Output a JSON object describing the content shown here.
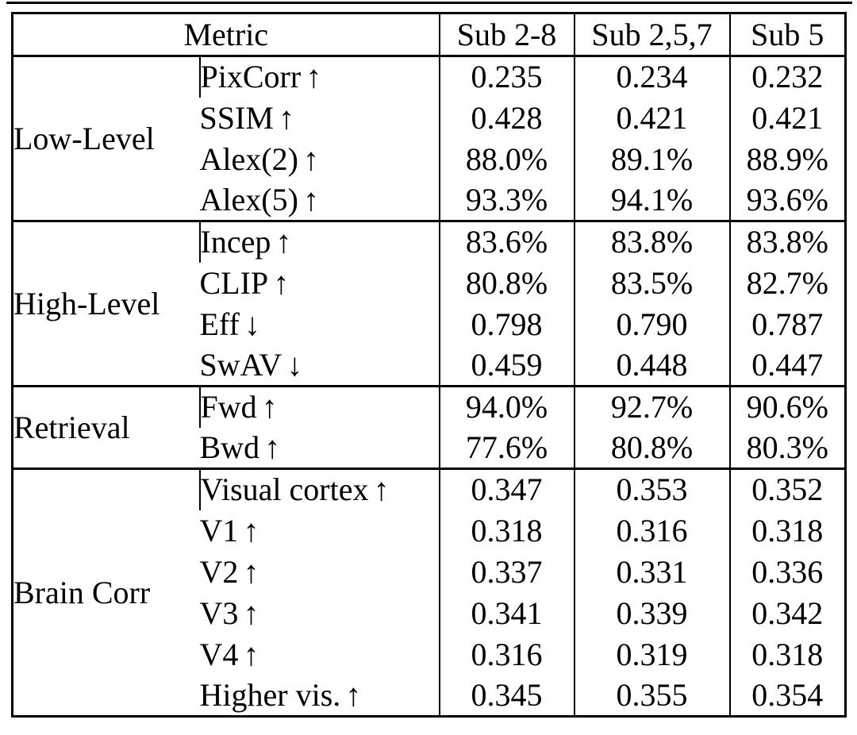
{
  "table": {
    "header": {
      "metric": "Metric",
      "cols": [
        "Sub 2-8",
        "Sub 2,5,7",
        "Sub 5"
      ]
    },
    "sections": [
      {
        "group": "Low-Level",
        "rows": [
          {
            "metric": "PixCorr",
            "arrow": "↑",
            "values": [
              "0.235",
              "0.234",
              "0.232"
            ],
            "bold": [
              true,
              false,
              false
            ]
          },
          {
            "metric": "SSIM",
            "arrow": "↑",
            "values": [
              "0.428",
              "0.421",
              "0.421"
            ],
            "bold": [
              true,
              false,
              false
            ]
          },
          {
            "metric": "Alex(2)",
            "arrow": "↑",
            "values": [
              "88.0%",
              "89.1%",
              "88.9%"
            ],
            "bold": [
              false,
              true,
              false
            ]
          },
          {
            "metric": "Alex(5)",
            "arrow": "↑",
            "values": [
              "93.3%",
              "94.1%",
              "93.6%"
            ],
            "bold": [
              false,
              true,
              false
            ]
          }
        ]
      },
      {
        "group": "High-Level",
        "rows": [
          {
            "metric": "Incep",
            "arrow": "↑",
            "values": [
              "83.6%",
              "83.8%",
              "83.8%"
            ],
            "bold": [
              false,
              true,
              true
            ]
          },
          {
            "metric": "CLIP",
            "arrow": "↑",
            "values": [
              "80.8%",
              "83.5%",
              "82.7%"
            ],
            "bold": [
              false,
              true,
              false
            ]
          },
          {
            "metric": "Eff",
            "arrow": "↓",
            "values": [
              "0.798",
              "0.790",
              "0.787"
            ],
            "bold": [
              false,
              false,
              true
            ]
          },
          {
            "metric": "SwAV",
            "arrow": "↓",
            "values": [
              "0.459",
              "0.448",
              "0.447"
            ],
            "bold": [
              false,
              false,
              true
            ]
          }
        ]
      },
      {
        "group": "Retrieval",
        "rows": [
          {
            "metric": "Fwd",
            "arrow": "↑",
            "values": [
              "94.0%",
              "92.7%",
              "90.6%"
            ],
            "bold": [
              true,
              false,
              false
            ]
          },
          {
            "metric": "Bwd",
            "arrow": "↑",
            "values": [
              "77.6%",
              "80.8%",
              "80.3%"
            ],
            "bold": [
              false,
              true,
              false
            ]
          }
        ]
      },
      {
        "group": "Brain Corr",
        "rows": [
          {
            "metric": "Visual cortex",
            "arrow": "↑",
            "values": [
              "0.347",
              "0.353",
              "0.352"
            ],
            "bold": [
              false,
              true,
              false
            ]
          },
          {
            "metric": "V1",
            "arrow": "↑",
            "values": [
              "0.318",
              "0.316",
              "0.318"
            ],
            "bold": [
              true,
              false,
              true
            ]
          },
          {
            "metric": "V2",
            "arrow": "↑",
            "values": [
              "0.337",
              "0.331",
              "0.336"
            ],
            "bold": [
              true,
              false,
              false
            ]
          },
          {
            "metric": "V3",
            "arrow": "↑",
            "values": [
              "0.341",
              "0.339",
              "0.342"
            ],
            "bold": [
              false,
              false,
              true
            ]
          },
          {
            "metric": "V4",
            "arrow": "↑",
            "values": [
              "0.316",
              "0.319",
              "0.318"
            ],
            "bold": [
              false,
              true,
              false
            ]
          },
          {
            "metric": "Higher vis.",
            "arrow": "↑",
            "values": [
              "0.345",
              "0.355",
              "0.354"
            ],
            "bold": [
              false,
              true,
              false
            ]
          }
        ]
      }
    ]
  }
}
